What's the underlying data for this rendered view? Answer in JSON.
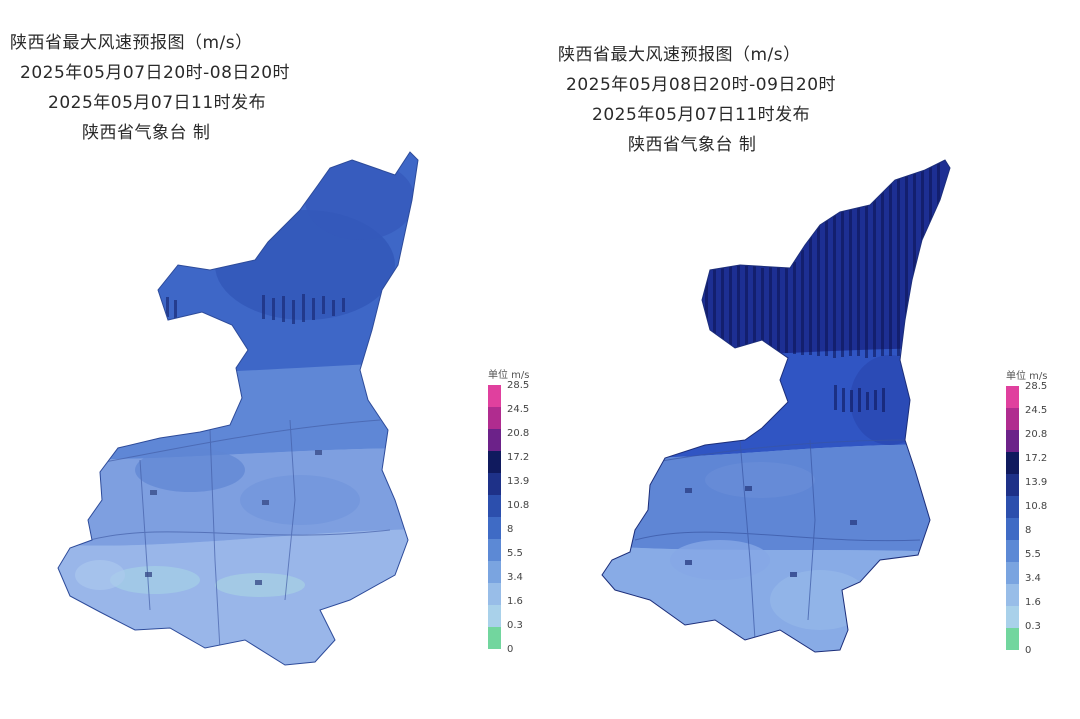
{
  "maps": [
    {
      "title": "陕西省最大风速预报图（m/s）",
      "period": "2025年05月07日20时-08日20时",
      "issued": "2025年05月07日11时发布",
      "producer": "陕西省气象台 制",
      "intensity": "moderate",
      "legend_title": "单位 m/s"
    },
    {
      "title": "陕西省最大风速预报图（m/s）",
      "period": "2025年05月08日20时-09日20时",
      "issued": "2025年05月07日11时发布",
      "producer": "陕西省气象台 制",
      "intensity": "strong",
      "legend_title": "单位 m/s"
    }
  ],
  "legend": {
    "labels": [
      "28.5",
      "24.5",
      "20.8",
      "17.2",
      "13.9",
      "10.8",
      "8",
      "5.5",
      "3.4",
      "1.6",
      "0.3",
      "0"
    ],
    "colors": [
      "#e0409e",
      "#b02c8f",
      "#6c2289",
      "#101a5e",
      "#1e3188",
      "#2c4fad",
      "#3f6bc5",
      "#5c89d5",
      "#7aa4e0",
      "#98bde8",
      "#a9d1ea",
      "#72d69e"
    ]
  }
}
